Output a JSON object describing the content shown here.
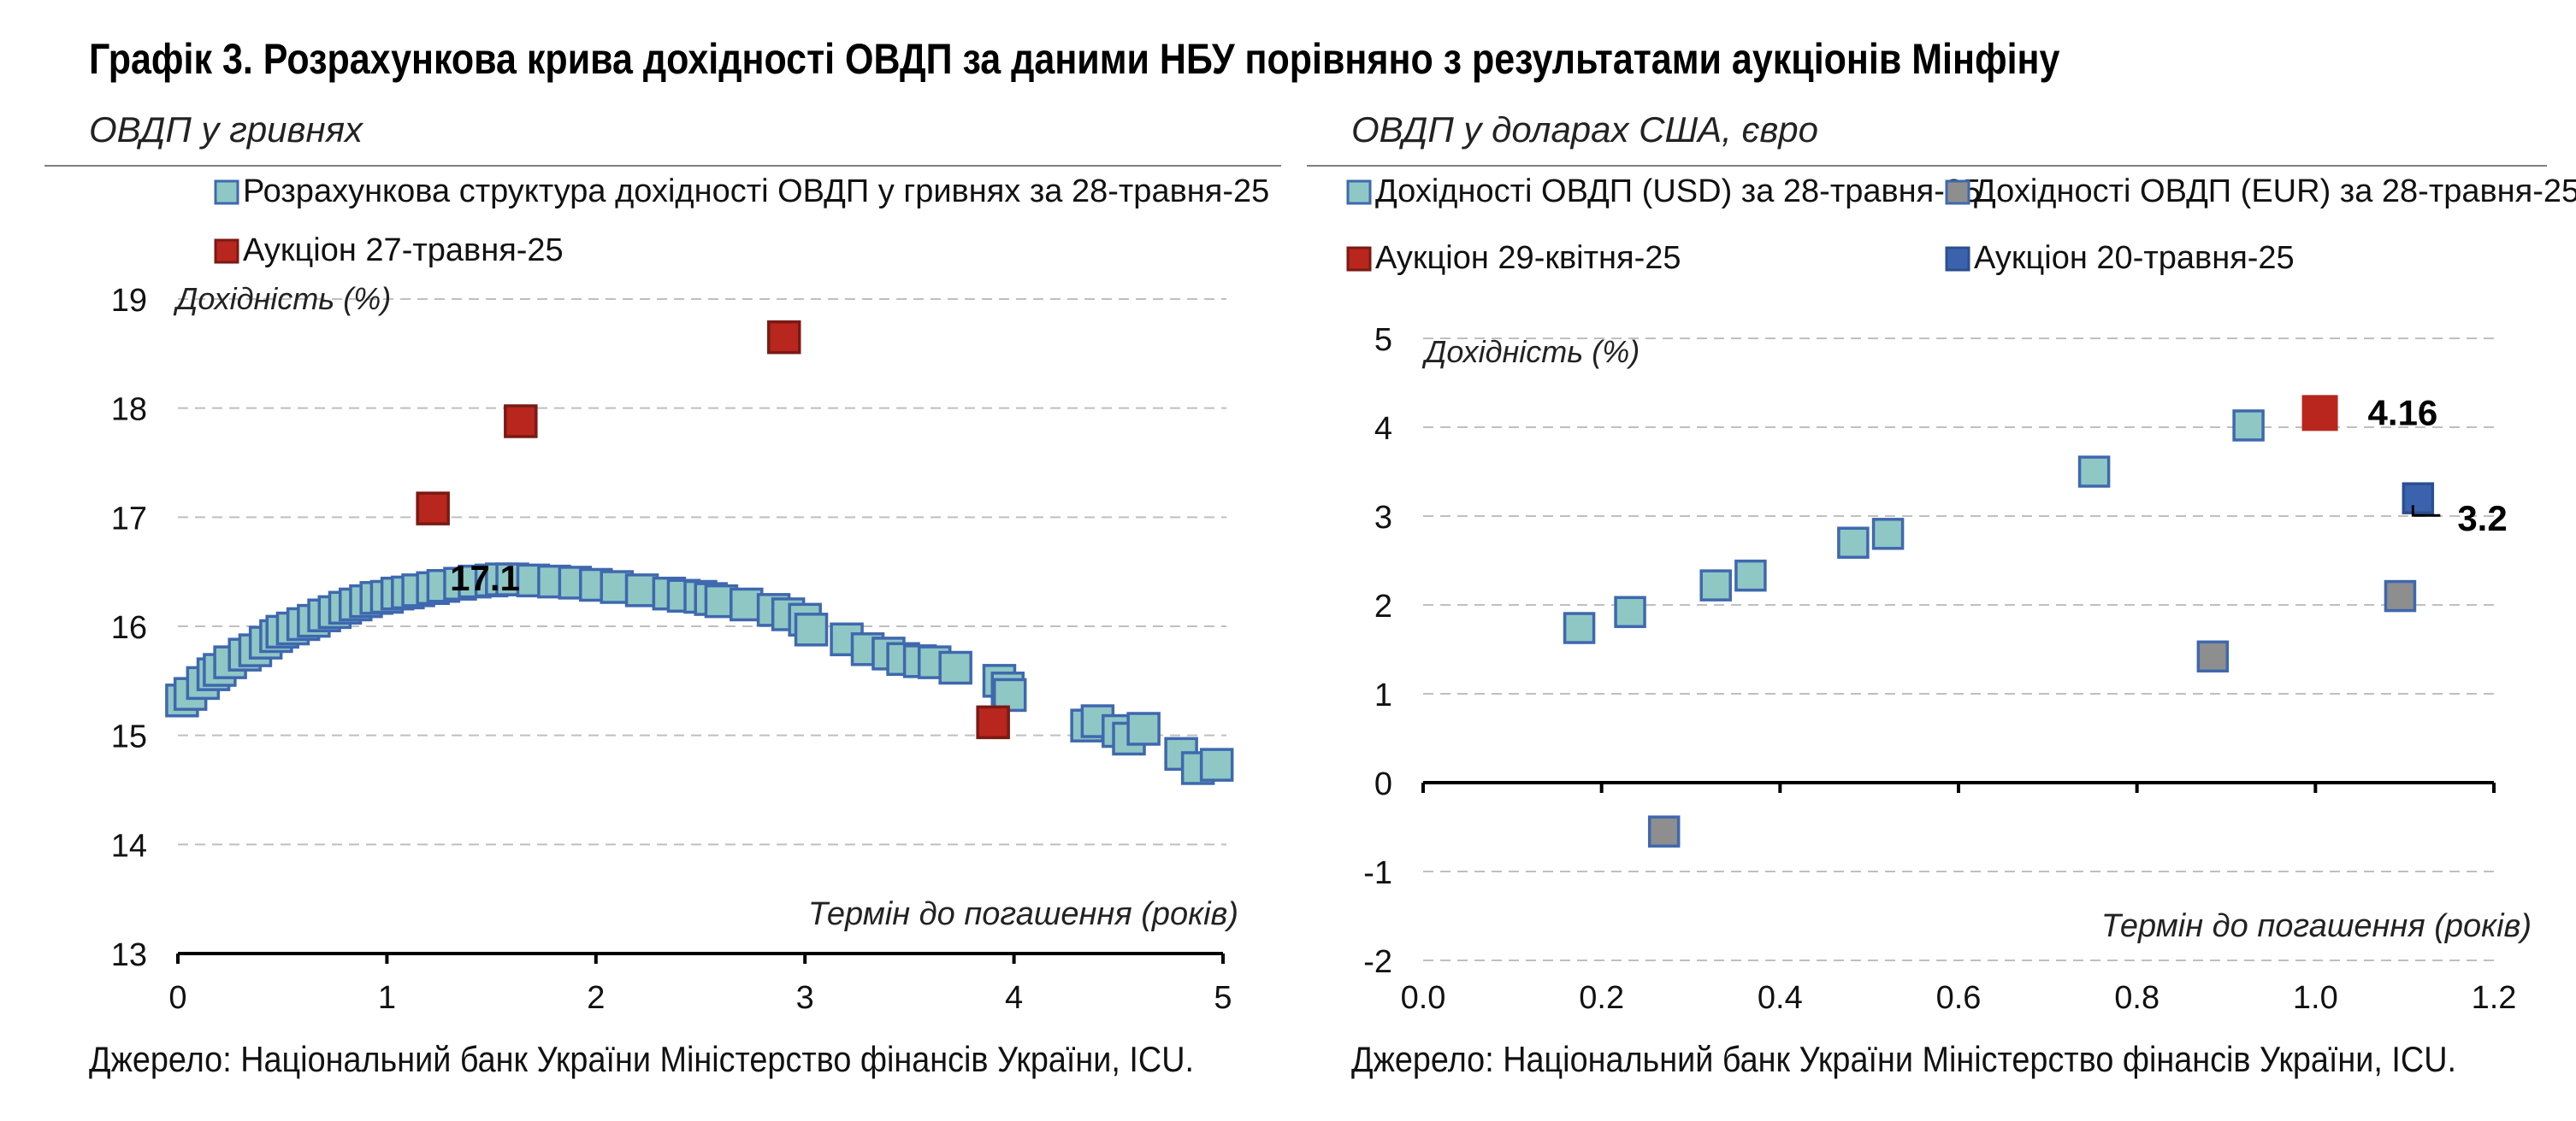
{
  "title": "Графік 3. Розрахункова крива дохідності ОВДП за даними НБУ порівняно з результатами аукціонів Мінфіну",
  "source": "Джерело: Національний банк України Міністерство фінансів України, ICU.",
  "colors": {
    "curve_fill": "#8fc7c5",
    "curve_stroke": "#3f68ae",
    "auction_red": "#b8261d",
    "eur_gray": "#8e8e8e",
    "auction_blue": "#3b63ad",
    "grid": "#bfbfbf",
    "axis": "#000000"
  },
  "chart_data": [
    {
      "type": "scatter",
      "subtitle": "ОВДП у гривнях",
      "ylabel": "Дохідність (%)",
      "xlabel": "Термін до погашення (років)",
      "xlim": [
        0,
        5
      ],
      "ylim": [
        13,
        19
      ],
      "xticks": [
        "0",
        "1",
        "2",
        "3",
        "4",
        "5"
      ],
      "yticks": [
        "13",
        "14",
        "15",
        "16",
        "17",
        "18",
        "19"
      ],
      "grid": "horizontal dashed",
      "legend_placement": "top",
      "series": [
        {
          "name": "Розрахункова структура дохідності ОВДП у гривнях за 28-травня-25",
          "color": "#8fc7c5",
          "points": [
            [
              0.02,
              15.32
            ],
            [
              0.06,
              15.38
            ],
            [
              0.12,
              15.48
            ],
            [
              0.17,
              15.56
            ],
            [
              0.2,
              15.6
            ],
            [
              0.25,
              15.67
            ],
            [
              0.32,
              15.74
            ],
            [
              0.37,
              15.78
            ],
            [
              0.42,
              15.85
            ],
            [
              0.47,
              15.91
            ],
            [
              0.5,
              15.95
            ],
            [
              0.55,
              15.98
            ],
            [
              0.6,
              16.02
            ],
            [
              0.65,
              16.05
            ],
            [
              0.7,
              16.1
            ],
            [
              0.75,
              16.13
            ],
            [
              0.8,
              16.17
            ],
            [
              0.85,
              16.2
            ],
            [
              0.9,
              16.23
            ],
            [
              0.95,
              16.26
            ],
            [
              1.0,
              16.27
            ],
            [
              1.05,
              16.3
            ],
            [
              1.1,
              16.31
            ],
            [
              1.15,
              16.33
            ],
            [
              1.22,
              16.35
            ],
            [
              1.27,
              16.37
            ],
            [
              1.35,
              16.39
            ],
            [
              1.42,
              16.41
            ],
            [
              1.5,
              16.42
            ],
            [
              1.55,
              16.43
            ],
            [
              1.6,
              16.43
            ],
            [
              1.7,
              16.42
            ],
            [
              1.8,
              16.41
            ],
            [
              1.9,
              16.4
            ],
            [
              2.0,
              16.38
            ],
            [
              2.1,
              16.36
            ],
            [
              2.22,
              16.33
            ],
            [
              2.35,
              16.3
            ],
            [
              2.42,
              16.28
            ],
            [
              2.5,
              16.27
            ],
            [
              2.55,
              16.25
            ],
            [
              2.6,
              16.23
            ],
            [
              2.72,
              16.2
            ],
            [
              2.85,
              16.15
            ],
            [
              2.92,
              16.11
            ],
            [
              3.0,
              16.06
            ],
            [
              3.03,
              15.97
            ],
            [
              3.2,
              15.88
            ],
            [
              3.3,
              15.79
            ],
            [
              3.4,
              15.75
            ],
            [
              3.47,
              15.7
            ],
            [
              3.55,
              15.68
            ],
            [
              3.62,
              15.67
            ],
            [
              3.72,
              15.62
            ],
            [
              3.93,
              15.5
            ],
            [
              3.97,
              15.43
            ],
            [
              3.98,
              15.37
            ],
            [
              4.35,
              15.09
            ],
            [
              4.4,
              15.13
            ],
            [
              4.5,
              15.04
            ],
            [
              4.55,
              14.97
            ],
            [
              4.62,
              15.06
            ],
            [
              4.8,
              14.83
            ],
            [
              4.88,
              14.7
            ],
            [
              4.97,
              14.73
            ]
          ]
        },
        {
          "name": "Аукціон 27-травня-25",
          "color": "#b8261d",
          "points": [
            [
              1.22,
              17.08
            ],
            [
              1.64,
              17.88
            ],
            [
              2.9,
              18.65
            ],
            [
              3.9,
              15.12
            ]
          ]
        }
      ],
      "annotations": [
        {
          "text": "17.1",
          "x": 1.22,
          "y": 17.08
        }
      ]
    },
    {
      "type": "scatter",
      "subtitle": "ОВДП у доларах США, євро",
      "ylabel": "Дохідність (%)",
      "xlabel": "Термін до погашення (років)",
      "xlim": [
        0,
        1.2
      ],
      "ylim": [
        -2,
        5
      ],
      "xticks": [
        "0.0",
        "0.2",
        "0.4",
        "0.6",
        "0.8",
        "1.0",
        "1.2"
      ],
      "yticks": [
        "-2",
        "-1",
        "0",
        "1",
        "2",
        "3",
        "4",
        "5"
      ],
      "grid": "horizontal dashed",
      "legend_placement": "top",
      "series": [
        {
          "name": "Дохідності ОВДП (USD) за 28-травня-25",
          "color": "#8fc7c5",
          "points": [
            [
              0.175,
              1.74
            ],
            [
              0.232,
              1.92
            ],
            [
              0.328,
              2.22
            ],
            [
              0.367,
              2.33
            ],
            [
              0.482,
              2.7
            ],
            [
              0.521,
              2.8
            ],
            [
              0.752,
              3.5
            ],
            [
              0.925,
              4.02
            ]
          ]
        },
        {
          "name": "Дохідності ОВДП (EUR) за 28-травня-25",
          "color": "#8e8e8e",
          "points": [
            [
              0.27,
              -0.55
            ],
            [
              0.885,
              1.42
            ],
            [
              1.095,
              2.1
            ]
          ]
        },
        {
          "name": "Аукціон 29-квітня-25",
          "color": "#b8261d",
          "points": [
            [
              1.005,
              4.16
            ]
          ]
        },
        {
          "name": "Аукціон 20-травня-25",
          "color": "#3b63ad",
          "points": [
            [
              1.115,
              3.2
            ]
          ]
        }
      ],
      "annotations": [
        {
          "text": "4.16",
          "x": 1.005,
          "y": 4.16
        },
        {
          "text": "3.2",
          "x": 1.115,
          "y": 3.2
        }
      ]
    }
  ]
}
